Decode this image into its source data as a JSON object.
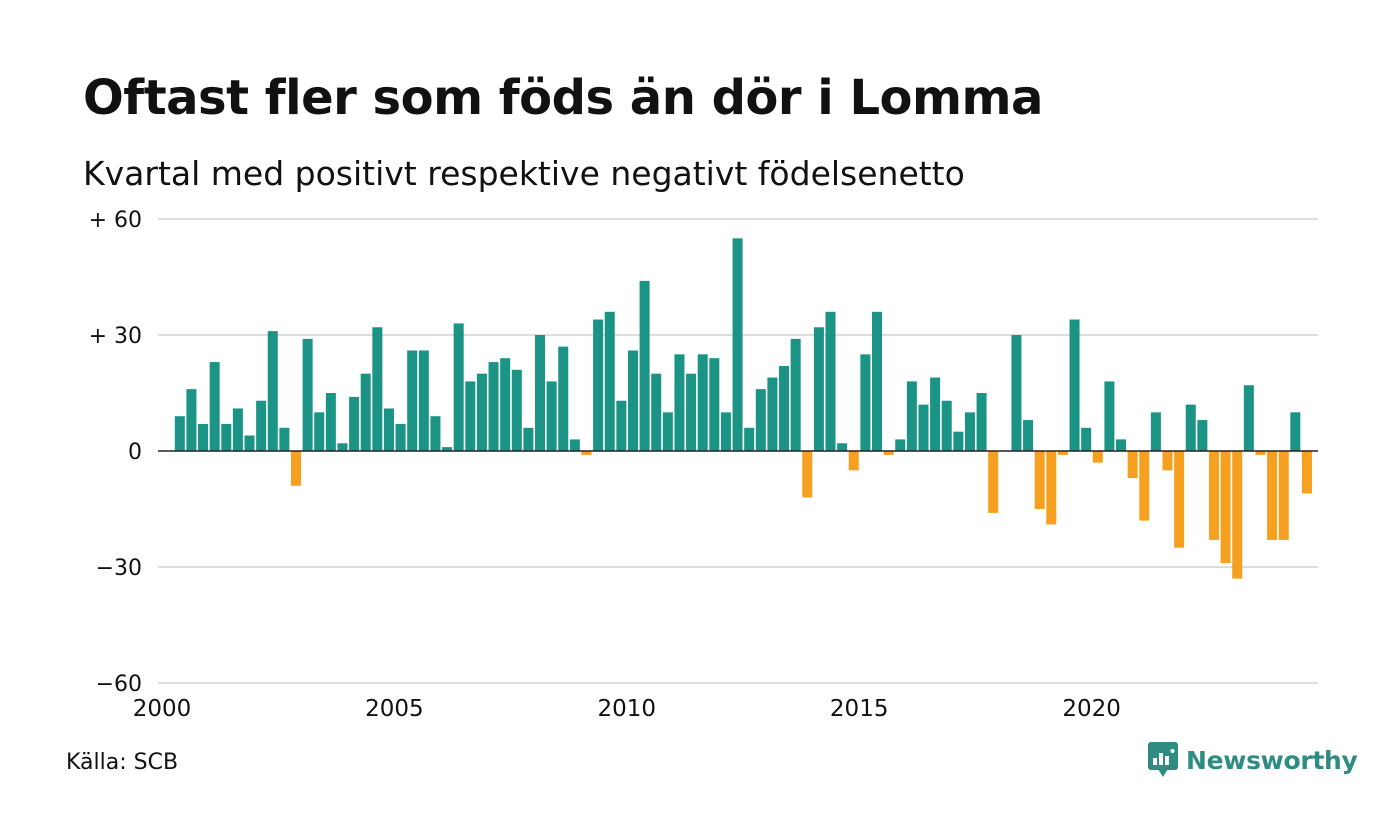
{
  "chart_data": {
    "type": "bar",
    "title": "Oftast fler som föds än dör i Lomma",
    "subtitle": "Kvartal med positivt respektive negativt födelsenetto",
    "x_start": "2000 Q1",
    "values": [
      9,
      16,
      7,
      23,
      7,
      11,
      4,
      13,
      31,
      6,
      -9,
      29,
      10,
      15,
      2,
      14,
      20,
      32,
      11,
      7,
      26,
      26,
      9,
      1,
      33,
      18,
      20,
      23,
      24,
      21,
      6,
      30,
      18,
      27,
      3,
      -1,
      34,
      36,
      13,
      26,
      44,
      20,
      10,
      25,
      20,
      25,
      24,
      10,
      55,
      6,
      16,
      19,
      22,
      29,
      -12,
      32,
      36,
      2,
      -5,
      25,
      36,
      -1,
      3,
      18,
      12,
      19,
      13,
      5,
      10,
      15,
      -16,
      0,
      30,
      8,
      -15,
      -19,
      -1,
      34,
      6,
      -3,
      18,
      3,
      -7,
      -18,
      10,
      -5,
      -25,
      12,
      8,
      -23,
      -29,
      -33,
      17,
      -1,
      -23,
      -23,
      10,
      -11
    ],
    "ylim": [
      -60,
      60
    ],
    "y_ticks": [
      {
        "value": 60,
        "label": "+ 60"
      },
      {
        "value": 30,
        "label": "+ 30"
      },
      {
        "value": 0,
        "label": "0"
      },
      {
        "value": -30,
        "label": "−30"
      },
      {
        "value": -60,
        "label": "−60"
      }
    ],
    "x_ticks": [
      {
        "year": 2000,
        "label": "2000"
      },
      {
        "year": 2005,
        "label": "2005"
      },
      {
        "year": 2010,
        "label": "2010"
      },
      {
        "year": 2015,
        "label": "2015"
      },
      {
        "year": 2020,
        "label": "2020"
      }
    ],
    "colors": {
      "positive": "#1b9485",
      "negative": "#f5a01e",
      "grid": "#dddddd",
      "zero_line": "#222222"
    },
    "grid": true,
    "legend": "none"
  },
  "source": "Källa: SCB",
  "brand": {
    "name": "Newsworthy",
    "color": "#2e8c83",
    "icon": "newsworthy-logo-icon"
  }
}
